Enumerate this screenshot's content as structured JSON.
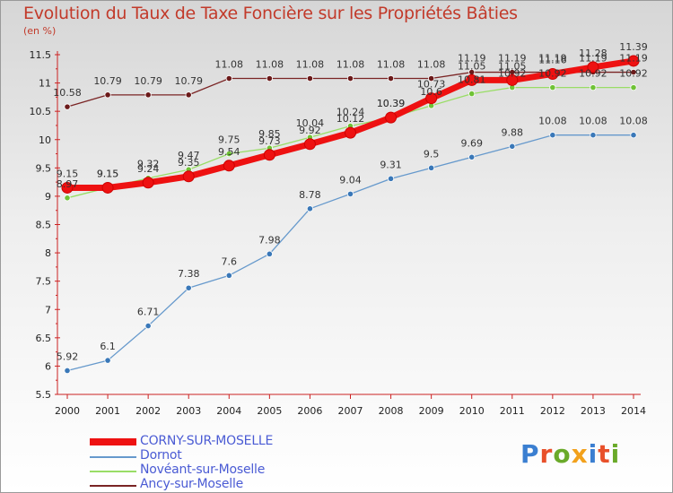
{
  "title": "Evolution du Taux de Taxe Foncière sur les Propriétés Bâties",
  "unit": "(en %)",
  "logo": {
    "text": "Proxiti",
    "colors": [
      "#3b7fd1",
      "#e8502a",
      "#6aaa2a",
      "#f2a11c",
      "#3b7fd1",
      "#e8502a",
      "#6aaa2a"
    ]
  },
  "chart_data": {
    "type": "line",
    "title": "Evolution du Taux de Taxe Foncière sur les Propriétés Bâties",
    "ylabel": "(en %)",
    "xlabel": "",
    "ylim": [
      5.5,
      11.5
    ],
    "ytick_step": 0.5,
    "yticks": [
      "5.5",
      "6",
      "6.5",
      "7",
      "7.5",
      "8",
      "8.5",
      "9",
      "9.5",
      "10",
      "10.5",
      "11",
      "11.5"
    ],
    "categories": [
      "2000",
      "2001",
      "2002",
      "2003",
      "2004",
      "2005",
      "2006",
      "2007",
      "2008",
      "2009",
      "2010",
      "2011",
      "2012",
      "2013",
      "2014"
    ],
    "series": [
      {
        "name": "Ancy-sur-Moselle",
        "color": "#7a2424",
        "marker": "#6b1a1a",
        "width": 1.3,
        "r": 3.2,
        "values": [
          10.58,
          10.79,
          10.79,
          10.79,
          11.08,
          11.08,
          11.08,
          11.08,
          11.08,
          11.08,
          11.19,
          11.19,
          11.19,
          11.19,
          11.19
        ]
      },
      {
        "name": "Noveant-sur-Moselle",
        "color": "#99dd66",
        "marker": "#6fc236",
        "width": 1.3,
        "r": 3.2,
        "values": [
          8.97,
          9.15,
          9.32,
          9.47,
          9.75,
          9.85,
          10.04,
          10.24,
          10.39,
          10.6,
          10.81,
          10.92,
          10.92,
          10.92,
          10.92
        ]
      },
      {
        "name": "Dornot",
        "color": "#6699cc",
        "marker": "#3a78b8",
        "width": 1.3,
        "r": 3.2,
        "values": [
          5.92,
          6.1,
          6.71,
          7.38,
          7.6,
          7.98,
          8.78,
          9.04,
          9.31,
          9.5,
          9.69,
          9.88,
          10.08,
          10.08,
          10.08
        ]
      },
      {
        "name": "CORNY-SUR-MOSELLE",
        "color": "#ee1111",
        "marker": "#ee1111",
        "width": 7,
        "r": 6,
        "values": [
          9.15,
          9.15,
          9.24,
          9.35,
          9.54,
          9.73,
          9.92,
          10.12,
          10.39,
          10.73,
          11.05,
          11.05,
          11.16,
          11.28,
          11.39
        ]
      }
    ],
    "data_labels": [
      {
        "series": "Ancy-sur-Moselle",
        "labels": [
          "10.58",
          "10.79",
          "10.79",
          "10.79",
          "11.08",
          "11.08",
          "11.08",
          "11.08",
          "11.08",
          "11.08",
          "11.19",
          "11.19",
          "11.19",
          "11.19",
          "11.19"
        ]
      },
      {
        "series": "Noveant-sur-Moselle",
        "labels": [
          "8.97",
          "9.15",
          "9.32",
          "9.47",
          "9.75",
          "9.85",
          "10.04",
          "10.24",
          "10.39",
          "10.6",
          "10.81",
          "10.92",
          "10.92",
          "10.92",
          "10.92"
        ]
      },
      {
        "series": "Dornot",
        "labels": [
          "5.92",
          "6.1",
          "6.71",
          "7.38",
          "7.6",
          "7.98",
          "8.78",
          "9.04",
          "9.31",
          "9.5",
          "9.69",
          "9.88",
          "10.08",
          "10.08",
          "10.08"
        ]
      },
      {
        "series": "CORNY-SUR-MOSELLE",
        "labels": [
          "9.15",
          "9.15",
          "9.24",
          "9.35",
          "9.54",
          "9.73",
          "9.92",
          "10.12",
          "10.39",
          "10.73",
          "11.05",
          "11.05",
          "11.16",
          "11.28",
          "11.39"
        ]
      }
    ],
    "legend": [
      "CORNY-SUR-MOSELLE",
      "Dornot",
      "Novéant-sur-Moselle",
      "Ancy-sur-Moselle"
    ],
    "legend_position": "bottom-left",
    "grid": false
  }
}
